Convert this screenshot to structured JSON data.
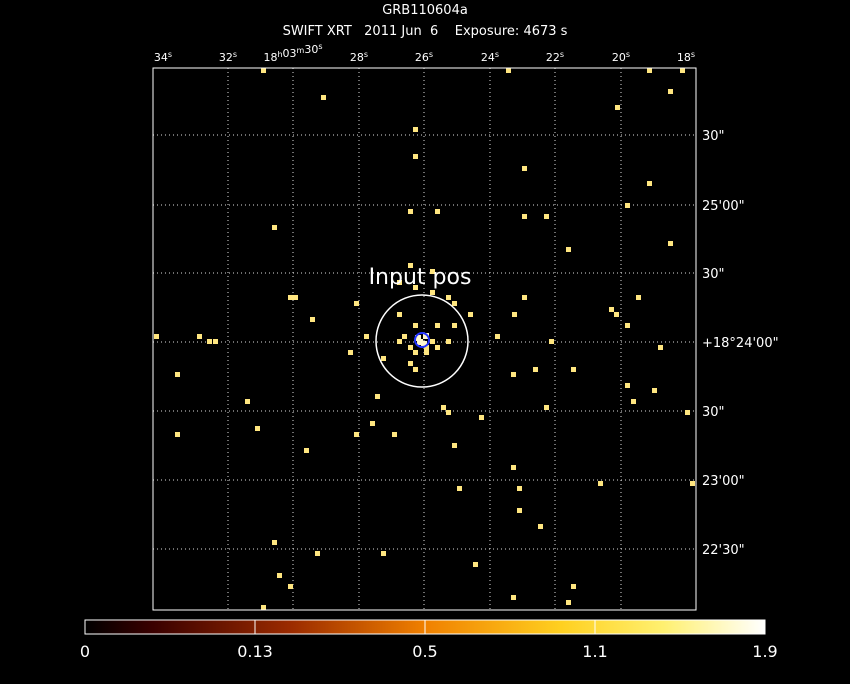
{
  "header": {
    "title": "GRB110604a",
    "subtitle": "SWIFT XRT   2011 Jun  6    Exposure: 4673 s"
  },
  "ra_ticks": [
    "34s",
    "32s",
    "18h03m30s",
    "28s",
    "26s",
    "24s",
    "22s",
    "20s",
    "18s"
  ],
  "dec_ticks": [
    "30\"",
    "25'00\"",
    "30\"",
    "+18°24'00\"",
    "30\"",
    "23'00\"",
    "22'30\""
  ],
  "annotation": "Input pos",
  "colorbar": {
    "labels": [
      "0",
      "0.13",
      "0.5",
      "1.1",
      "1.9"
    ]
  }
}
